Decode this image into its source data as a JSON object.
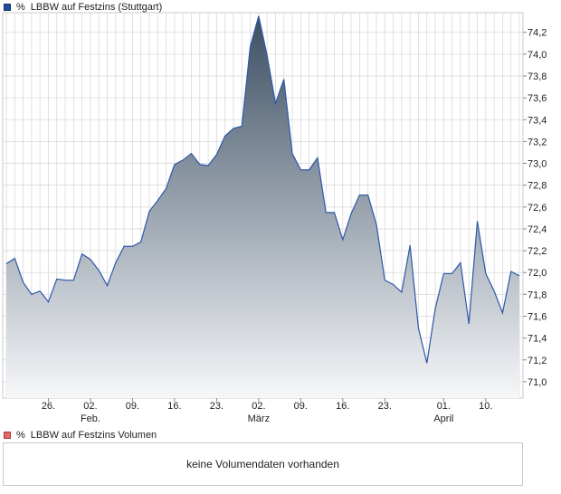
{
  "legend": {
    "price": {
      "unit": "%",
      "label": "LBBW auf Festzins (Stuttgart)"
    },
    "volume": {
      "unit": "%",
      "label": "LBBW auf Festzins Volumen"
    }
  },
  "volume_panel": {
    "message": "keine Volumendaten vorhanden"
  },
  "colors": {
    "line": "#2c58a8",
    "grid": "#d9d9d9",
    "fill_top": "#3c4f63",
    "fill_bottom": "#f6f7f9"
  },
  "chart_data": {
    "type": "area",
    "title": "LBBW auf Festzins (Stuttgart)",
    "unit": "%",
    "ylim": [
      70.85,
      74.38
    ],
    "yticks": [
      71.0,
      71.2,
      71.4,
      71.6,
      71.8,
      72.0,
      72.2,
      72.4,
      72.6,
      72.8,
      73.0,
      73.2,
      73.4,
      73.6,
      73.8,
      74.0,
      74.2
    ],
    "ytick_labels": [
      "71,0",
      "71,2",
      "71,4",
      "71,6",
      "71,8",
      "72,0",
      "72,2",
      "72,4",
      "72,6",
      "72,8",
      "73,0",
      "73,2",
      "73,4",
      "73,6",
      "73,8",
      "74,0",
      "74,2"
    ],
    "xticks": [
      {
        "index": 5,
        "label": "26.",
        "sub": ""
      },
      {
        "index": 10,
        "label": "02.",
        "sub": "Feb."
      },
      {
        "index": 15,
        "label": "09.",
        "sub": ""
      },
      {
        "index": 20,
        "label": "16.",
        "sub": ""
      },
      {
        "index": 25,
        "label": "23.",
        "sub": ""
      },
      {
        "index": 30,
        "label": "02.",
        "sub": "März"
      },
      {
        "index": 35,
        "label": "09.",
        "sub": ""
      },
      {
        "index": 40,
        "label": "16.",
        "sub": ""
      },
      {
        "index": 45,
        "label": "23.",
        "sub": ""
      },
      {
        "index": 52,
        "label": "01.",
        "sub": "April"
      },
      {
        "index": 57,
        "label": "10.",
        "sub": ""
      }
    ],
    "grid": true,
    "series": [
      {
        "values": [
          72.08,
          72.13,
          71.91,
          71.8,
          71.83,
          71.73,
          71.94,
          71.93,
          71.93,
          72.17,
          72.12,
          72.02,
          71.88,
          72.09,
          72.24,
          72.24,
          72.28,
          72.56,
          72.66,
          72.77,
          72.99,
          73.03,
          73.09,
          72.99,
          72.98,
          73.08,
          73.25,
          73.32,
          73.34,
          74.07,
          74.35,
          73.99,
          73.55,
          73.77,
          73.09,
          72.94,
          72.94,
          73.05,
          72.55,
          72.55,
          72.3,
          72.54,
          72.71,
          72.71,
          72.44,
          71.93,
          71.89,
          71.82,
          72.25,
          71.49,
          71.17,
          71.67,
          71.99,
          71.99,
          72.09,
          71.53,
          72.47,
          71.99,
          71.83,
          71.63,
          72.01,
          71.97
        ]
      }
    ]
  }
}
